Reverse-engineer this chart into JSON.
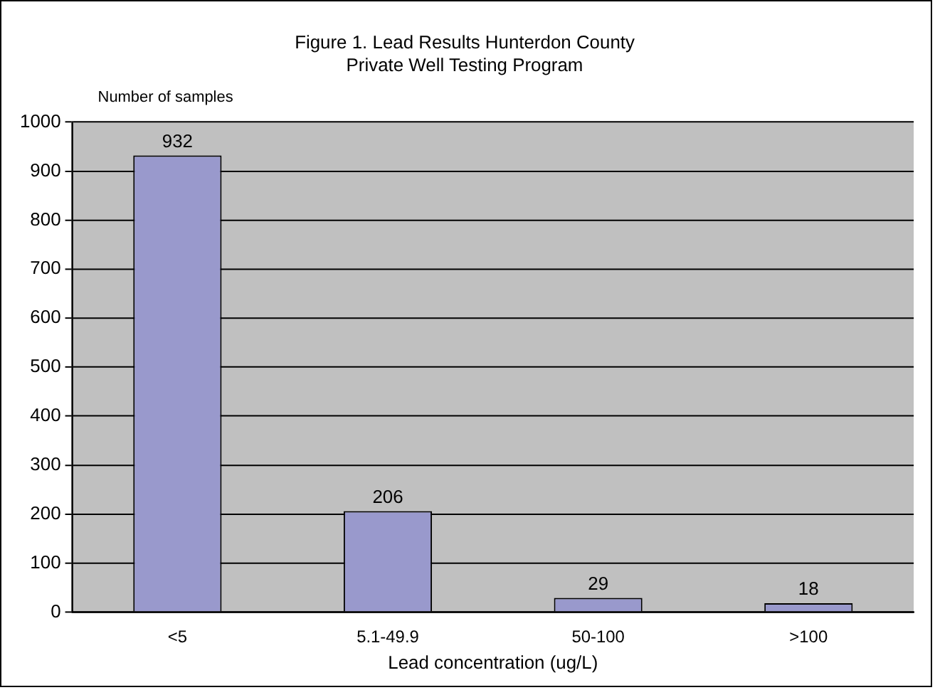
{
  "chart_data": {
    "type": "bar",
    "title": "Figure 1. Lead Results Hunterdon County\nPrivate Well Testing Program",
    "ylabel": "Number of samples",
    "xlabel": "Lead concentration (ug/L)",
    "categories": [
      "<5",
      "5.1-49.9",
      "50-100",
      ">100"
    ],
    "values": [
      932,
      206,
      29,
      18
    ],
    "color": "#9999cc",
    "ylim": [
      0,
      1000
    ],
    "yticks": [
      0,
      100,
      200,
      300,
      400,
      500,
      600,
      700,
      800,
      900,
      1000
    ],
    "grid": "y",
    "data_labels": true,
    "legend": false
  }
}
